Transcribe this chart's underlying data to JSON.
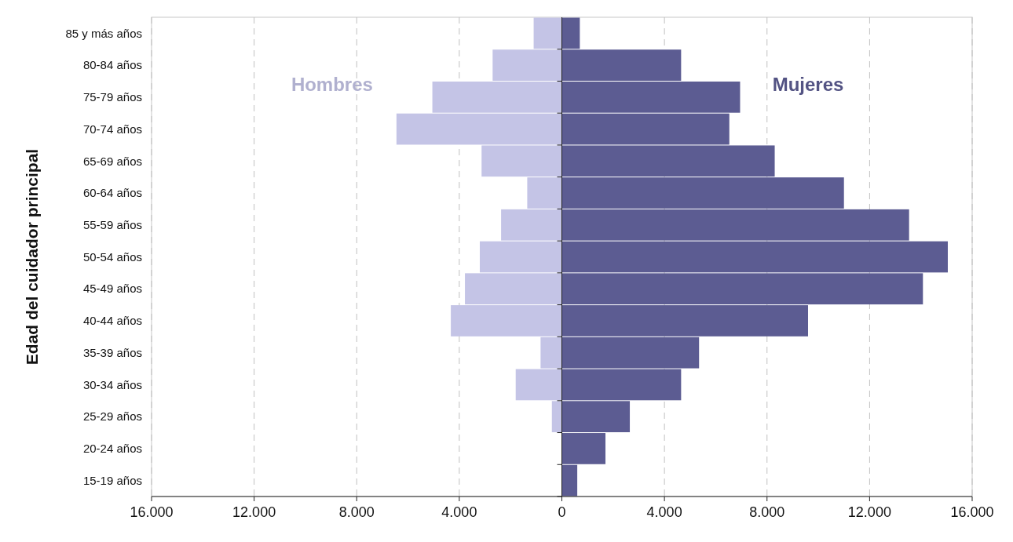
{
  "chart_data": {
    "type": "bar",
    "orientation": "horizontal",
    "stacked": true,
    "ylabel": "Edad del cuidador principal",
    "categories": [
      "85 y más años",
      "80-84 años",
      "75-79 años",
      "70-74 años",
      "65-69 años",
      "60-64 años",
      "55-59 años",
      "50-54 años",
      "45-49 años",
      "40-44 años",
      "35-39 años",
      "30-34 años",
      "25-29 años",
      "20-24 años",
      "15-19 años"
    ],
    "series": [
      {
        "name": "Hombres",
        "color": "#c4c4e6",
        "values": [
          -1100,
          -2700,
          -5050,
          -6450,
          -3130,
          -1350,
          -2370,
          -3200,
          -3780,
          -4330,
          -830,
          -1800,
          -390,
          0,
          0
        ]
      },
      {
        "name": "Mujeres",
        "color": "#5c5c92",
        "values": [
          700,
          4650,
          6950,
          6530,
          8300,
          11000,
          13540,
          15050,
          14080,
          9600,
          5350,
          4650,
          2650,
          1700,
          600
        ]
      }
    ],
    "xlim": [
      -16000,
      16000
    ],
    "xticks": [
      {
        "value": -16000,
        "label": "16.000"
      },
      {
        "value": -12000,
        "label": "12.000"
      },
      {
        "value": -8000,
        "label": "8.000"
      },
      {
        "value": -4000,
        "label": "4.000"
      },
      0,
      {
        "value": 4000,
        "label": "4.000"
      },
      {
        "value": 8000,
        "label": "8.000"
      },
      {
        "value": 12000,
        "label": "12.000"
      },
      {
        "value": 16000,
        "label": "16.000"
      }
    ],
    "grid": "x"
  }
}
